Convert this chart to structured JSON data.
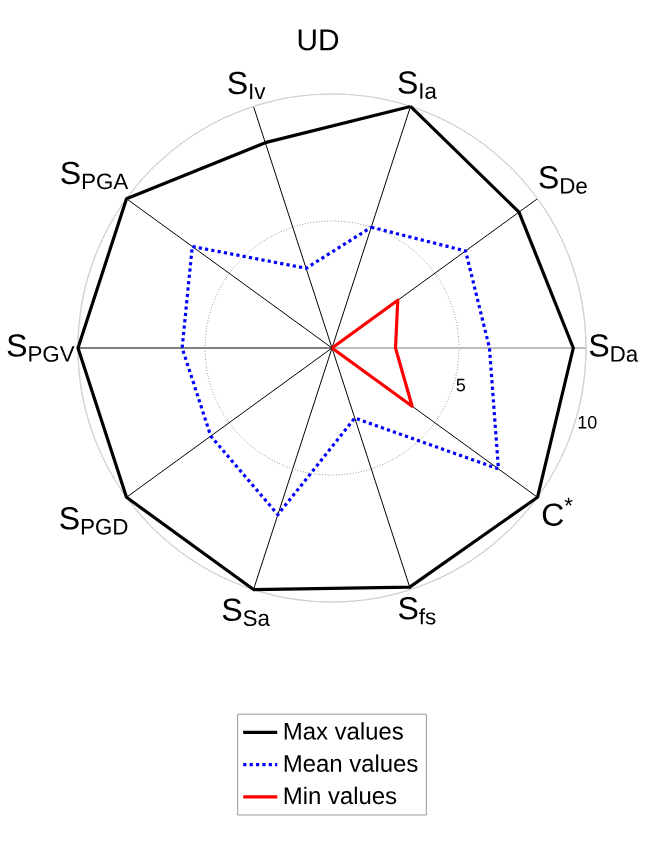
{
  "chart_data": {
    "type": "radar",
    "title": "UD",
    "categories": [
      "S$_{Ia}$",
      "S$_{De}$",
      "S$_{Da}$",
      "C$^{*}$",
      "S$_{fs}$",
      "S$_{Sa}$",
      "S$_{PGD}$",
      "S$_{PGV}$",
      "S$_{PGA}$",
      "S$_{Iv}$"
    ],
    "ylim": [
      0,
      10
    ],
    "yticks": [
      5,
      10
    ],
    "grid": true,
    "legend": "bottom",
    "series": [
      {
        "name": "Max values",
        "color": "#000000",
        "line_style": "solid",
        "values": [
          10,
          9.1,
          9.5,
          10,
          9.9,
          10,
          10,
          10,
          10,
          8.5
        ]
      },
      {
        "name": "Mean values",
        "color": "#0000ff",
        "line_style": "dotted",
        "values": [
          5.0,
          6.5,
          6.2,
          8.1,
          2.9,
          6.9,
          5.9,
          5.9,
          6.8,
          3.3
        ]
      },
      {
        "name": "Min values",
        "color": "#ff0000",
        "line_style": "solid",
        "values": [
          0,
          3.2,
          2.5,
          3.9,
          0,
          0,
          0,
          0,
          0,
          0
        ]
      }
    ]
  }
}
